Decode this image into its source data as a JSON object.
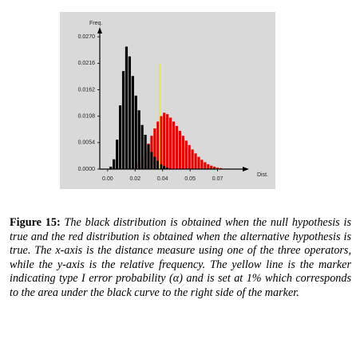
{
  "chart_data": {
    "type": "bar",
    "ylabel": "Freq.",
    "xlabel": "Dist.",
    "xlim": [
      -0.005,
      0.089
    ],
    "ylim": [
      0,
      0.028
    ],
    "xticks": [
      {
        "value": 0,
        "label": "0.00"
      },
      {
        "value": 0.0175,
        "label": "0.02"
      },
      {
        "value": 0.035,
        "label": "0.04"
      },
      {
        "value": 0.0525,
        "label": "0.05"
      },
      {
        "value": 0.07,
        "label": "0.07"
      }
    ],
    "yticks": [
      {
        "value": 0,
        "label": "0.0000"
      },
      {
        "value": 0.0054,
        "label": "0.0054"
      },
      {
        "value": 0.0108,
        "label": "0.0108"
      },
      {
        "value": 0.0162,
        "label": "0.0162"
      },
      {
        "value": 0.0216,
        "label": "0.0216"
      },
      {
        "value": 0.027,
        "label": "0.0270"
      }
    ],
    "series": [
      {
        "color": "#e00000",
        "x": [
          0.016,
          0.018,
          0.02,
          0.022,
          0.024,
          0.026,
          0.028,
          0.03,
          0.032,
          0.034,
          0.036,
          0.038,
          0.04,
          0.042,
          0.044,
          0.046,
          0.048,
          0.05,
          0.052,
          0.054,
          0.056,
          0.058,
          0.06,
          0.062,
          0.064,
          0.066,
          0.068,
          0.07,
          0.072,
          0.074,
          0.076
        ],
        "values": [
          0.0003,
          0.0008,
          0.0015,
          0.0025,
          0.0038,
          0.0052,
          0.0068,
          0.0083,
          0.0097,
          0.0108,
          0.0115,
          0.0112,
          0.0105,
          0.0097,
          0.0088,
          0.0078,
          0.0068,
          0.0058,
          0.0049,
          0.004,
          0.0032,
          0.0025,
          0.0019,
          0.0014,
          0.001,
          0.0007,
          0.0005,
          0.0003,
          0.0002,
          0.0001,
          0.0001
        ]
      },
      {
        "color": "#000000",
        "x": [
          0.002,
          0.004,
          0.006,
          0.008,
          0.01,
          0.012,
          0.014,
          0.016,
          0.018,
          0.02,
          0.022,
          0.024,
          0.026,
          0.028,
          0.03,
          0.032,
          0.034,
          0.036,
          0.038,
          0.04
        ],
        "values": [
          0.0005,
          0.002,
          0.006,
          0.013,
          0.02,
          0.025,
          0.023,
          0.019,
          0.015,
          0.012,
          0.009,
          0.007,
          0.005,
          0.0035,
          0.0025,
          0.0017,
          0.001,
          0.0006,
          0.0003,
          0.0001
        ]
      }
    ],
    "marker": {
      "x": 0.033,
      "y": 0.0215,
      "color": "#f0f000"
    }
  },
  "caption": {
    "label": "Figure 15:",
    "text": "The black distribution is obtained when the null hypothesis is true and the red distribution is obtained when the alternative hypothesis is true. The x-axis is the distance measure using one of the three operators, while the y-axis is the relative frequency. The yellow line is the marker indicating type I error probability (α) and is set at 1% which corresponds to the area under the black curve to the right side of the marker."
  }
}
